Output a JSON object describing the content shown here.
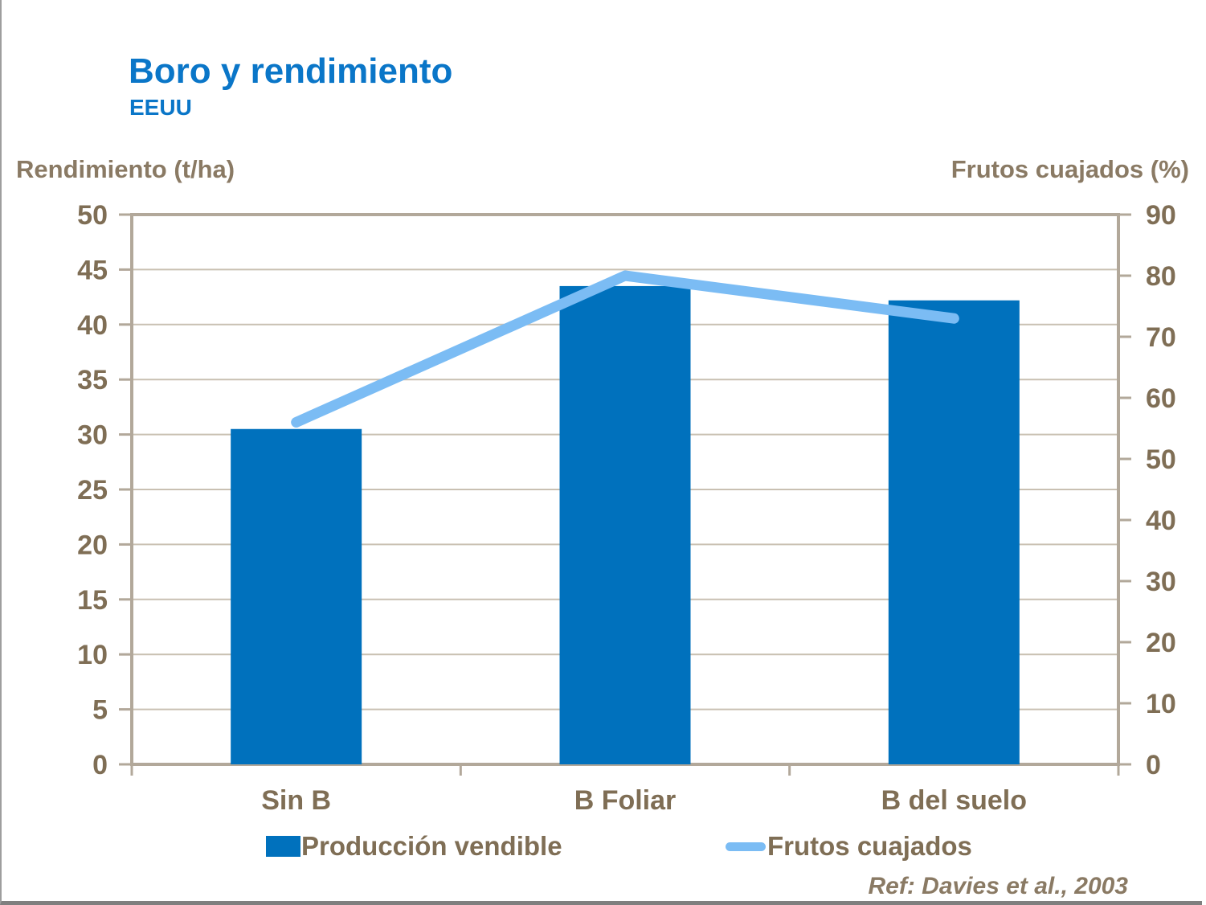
{
  "slide": {
    "title": "Boro y rendimiento",
    "subtitle": "EEUU",
    "reference": "Ref: Davies et al., 2003"
  },
  "colors": {
    "title_blue": "#0a76c8",
    "bar_blue": "#0071bd",
    "line_blue": "#7bbcf4",
    "text_brown": "#7f6e55",
    "axis_title_brown": "#8a7a64",
    "axis_frame": "#b2a89a",
    "gridline": "#c9c0b2"
  },
  "chart_data": {
    "type": "bar",
    "subtype": "combo-bar-line",
    "categories": [
      "Sin B",
      "B Foliar",
      "B del suelo"
    ],
    "series": [
      {
        "name": "Producción vendible",
        "type": "bar",
        "axis": "left",
        "color": "#0071bd",
        "values": [
          30.5,
          43.5,
          42.2
        ]
      },
      {
        "name": "Frutos cuajados",
        "type": "line",
        "axis": "right",
        "color": "#7bbcf4",
        "values": [
          56,
          80,
          73
        ]
      }
    ],
    "left_axis": {
      "label": "Rendimiento (t/ha)",
      "min": 0,
      "max": 50,
      "step": 5,
      "ticks": [
        50,
        45,
        40,
        35,
        30,
        25,
        20,
        15,
        10,
        5,
        0
      ]
    },
    "right_axis": {
      "label": "Frutos cuajados (%)",
      "min": 0,
      "max": 90,
      "step": 10,
      "ticks": [
        90,
        80,
        70,
        60,
        50,
        40,
        30,
        20,
        10,
        0
      ]
    },
    "legend": {
      "position": "bottom",
      "entries": [
        "Producción vendible",
        "Frutos cuajados"
      ]
    },
    "grid": true,
    "title": "Boro y rendimiento",
    "subtitle": "EEUU",
    "annotation": "Ref: Davies et al., 2003"
  }
}
